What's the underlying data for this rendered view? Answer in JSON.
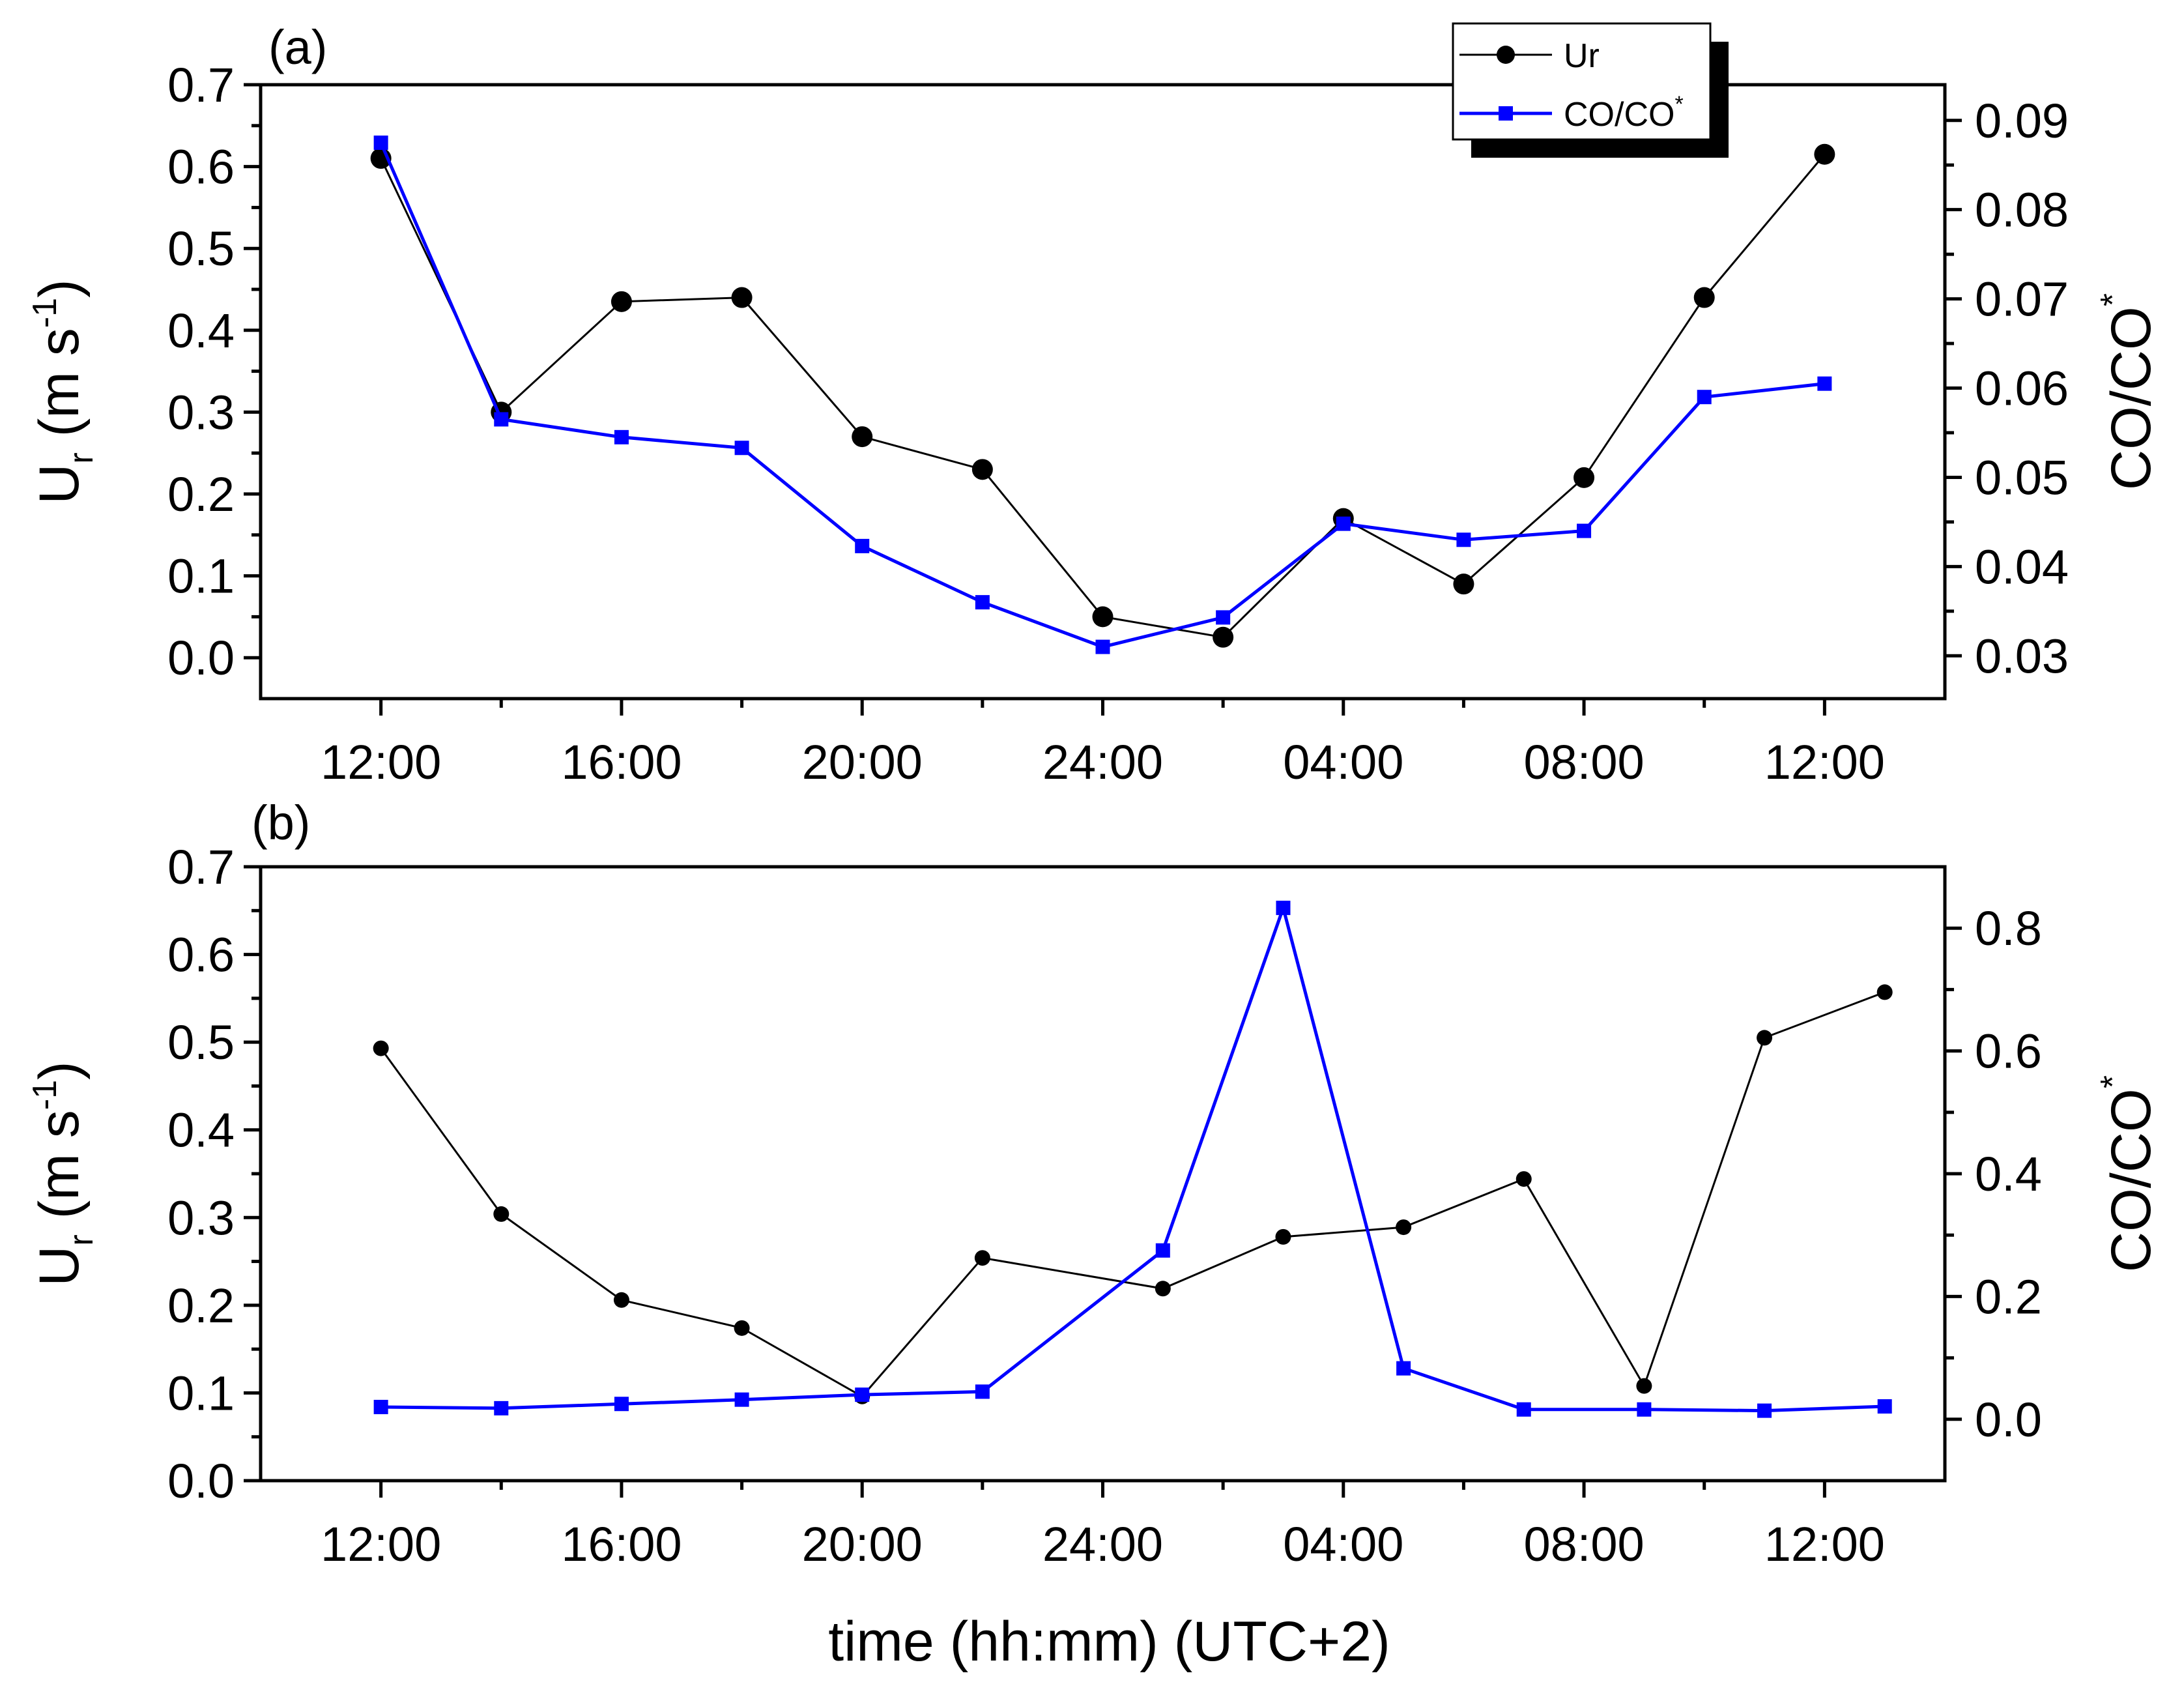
{
  "chart_data": [
    {
      "type": "line",
      "panel_label": "(a)",
      "x_tick_labels": [
        "12:00",
        "16:00",
        "20:00",
        "24:00",
        "04:00",
        "08:00",
        "12:00"
      ],
      "x_tick_hours": [
        0,
        4,
        8,
        12,
        16,
        20,
        24
      ],
      "x_range_hours": [
        -2,
        26
      ],
      "left_axis": {
        "label_main": "U",
        "label_sub": "r",
        "label_unit_open": " (m s",
        "label_unit_sup": "-1",
        "label_unit_close": ")",
        "ylim": [
          -0.05,
          0.7
        ],
        "ticks": [
          "0.0",
          "0.1",
          "0.2",
          "0.3",
          "0.4",
          "0.5",
          "0.6",
          "0.7"
        ],
        "tick_values": [
          0.0,
          0.1,
          0.2,
          0.3,
          0.4,
          0.5,
          0.6,
          0.7
        ]
      },
      "right_axis": {
        "label_main": "CO/CO",
        "label_sup": "*",
        "ylim": [
          0.0252,
          0.094
        ],
        "ticks": [
          "0.03",
          "0.04",
          "0.05",
          "0.06",
          "0.07",
          "0.08",
          "0.09"
        ],
        "tick_values": [
          0.03,
          0.04,
          0.05,
          0.06,
          0.07,
          0.08,
          0.09
        ]
      },
      "series": [
        {
          "name": "Ur",
          "axis": "left",
          "color": "#000000",
          "marker": "circle",
          "x_hours": [
            0,
            2,
            4,
            6,
            8,
            10,
            12,
            14,
            16,
            18,
            20,
            22,
            24
          ],
          "values": [
            0.61,
            0.3,
            0.435,
            0.44,
            0.27,
            0.23,
            0.05,
            0.025,
            0.17,
            0.09,
            0.22,
            0.44,
            0.615
          ]
        },
        {
          "name": "CO/CO*",
          "axis": "right",
          "color": "#0000ff",
          "marker": "square",
          "x_hours": [
            0,
            2,
            4,
            6,
            8,
            10,
            12,
            14,
            16,
            18,
            20,
            22,
            24
          ],
          "values": [
            0.0875,
            0.0565,
            0.0545,
            0.0533,
            0.0423,
            0.036,
            0.031,
            0.0343,
            0.0448,
            0.043,
            0.044,
            0.059,
            0.0605
          ]
        }
      ],
      "legend": {
        "position": "top-right",
        "entries": [
          {
            "label_main": "Ur",
            "label_sup": "",
            "color": "#000000",
            "marker": "circle"
          },
          {
            "label_main": "CO/CO",
            "label_sup": "*",
            "color": "#0000ff",
            "marker": "square"
          }
        ]
      }
    },
    {
      "type": "line",
      "panel_label": "(b)",
      "x_tick_labels": [
        "12:00",
        "16:00",
        "20:00",
        "24:00",
        "04:00",
        "08:00",
        "12:00"
      ],
      "x_tick_hours": [
        0,
        4,
        8,
        12,
        16,
        20,
        24
      ],
      "x_range_hours": [
        -2,
        26
      ],
      "xlabel": "time (hh:mm) (UTC+2)",
      "left_axis": {
        "label_main": "U",
        "label_sub": "r",
        "label_unit_open": " (m s",
        "label_unit_sup": "-1",
        "label_unit_close": ")",
        "ylim": [
          0.0,
          0.7
        ],
        "ticks": [
          "0.0",
          "0.1",
          "0.2",
          "0.3",
          "0.4",
          "0.5",
          "0.6",
          "0.7"
        ],
        "tick_values": [
          0.0,
          0.1,
          0.2,
          0.3,
          0.4,
          0.5,
          0.6,
          0.7
        ]
      },
      "right_axis": {
        "label_main": "CO/CO",
        "label_sup": "*",
        "ylim": [
          -0.1,
          0.9
        ],
        "ticks": [
          "0.0",
          "0.2",
          "0.4",
          "0.6",
          "0.8"
        ],
        "tick_values": [
          0.0,
          0.2,
          0.4,
          0.6,
          0.8
        ]
      },
      "series": [
        {
          "name": "Ur",
          "axis": "left",
          "color": "#000000",
          "marker": "circle",
          "x_hours": [
            0,
            2,
            4,
            6,
            8,
            10,
            13,
            15,
            17,
            19,
            21,
            23,
            25
          ],
          "values": [
            0.493,
            0.304,
            0.206,
            0.174,
            0.096,
            0.254,
            0.219,
            0.278,
            0.289,
            0.344,
            0.108,
            0.505,
            0.557
          ]
        },
        {
          "name": "CO/CO*",
          "axis": "right",
          "color": "#0000ff",
          "marker": "square",
          "x_hours": [
            0,
            2,
            4,
            6,
            8,
            10,
            13,
            15,
            17,
            19,
            21,
            23,
            25
          ],
          "values": [
            0.02,
            0.018,
            0.025,
            0.032,
            0.04,
            0.045,
            0.275,
            0.833,
            0.083,
            0.016,
            0.016,
            0.014,
            0.021
          ]
        }
      ]
    }
  ]
}
